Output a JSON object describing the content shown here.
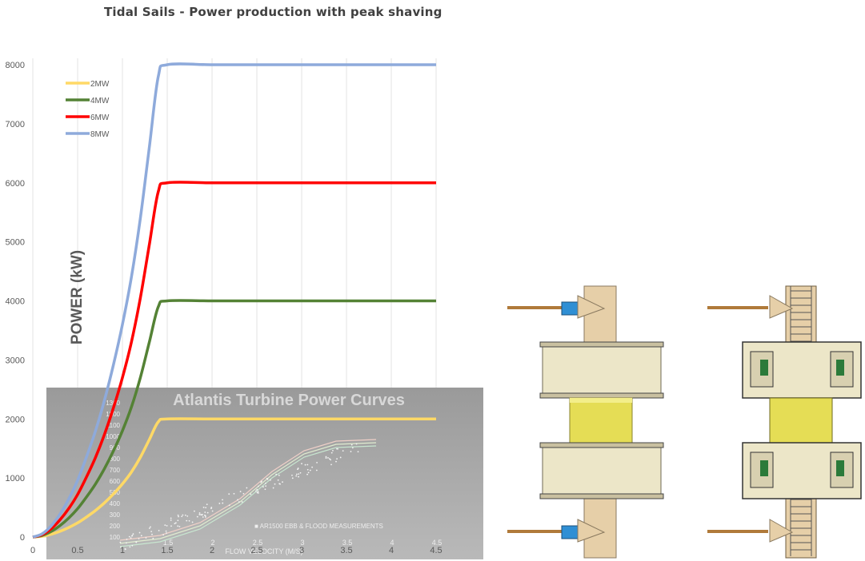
{
  "chart_data": {
    "type": "line",
    "title": "Tidal Sails - Power production with peak shaving",
    "xlabel": "",
    "ylabel": "POWER (kW)",
    "xlim": [
      0,
      4.5
    ],
    "ylim": [
      0,
      8000
    ],
    "x_ticks": [
      "0",
      "0.5",
      "1",
      "1.5",
      "2",
      "2.5",
      "3",
      "3.5",
      "4",
      "4.5"
    ],
    "y_ticks": [
      "0",
      "1000",
      "2000",
      "3000",
      "4000",
      "5000",
      "6000",
      "7000",
      "8000"
    ],
    "grid": "vertical",
    "legend_position": "top-left",
    "series": [
      {
        "name": "2MW",
        "color": "#ffd966",
        "cap": 2000,
        "x": [
          0,
          0.1,
          0.2,
          0.3,
          0.4,
          0.5,
          0.6,
          0.7,
          0.8,
          0.9,
          1.0,
          1.1,
          1.2,
          1.3,
          1.4,
          1.5,
          2.0,
          2.5,
          3.0,
          3.5,
          4.0,
          4.5
        ],
        "values": [
          0,
          12,
          45,
          95,
          160,
          240,
          340,
          450,
          580,
          730,
          900,
          1100,
          1350,
          1650,
          1950,
          2000,
          2000,
          2000,
          2000,
          2000,
          2000,
          2000
        ]
      },
      {
        "name": "4MW",
        "color": "#548235",
        "cap": 4000,
        "x": [
          0,
          0.1,
          0.2,
          0.3,
          0.4,
          0.5,
          0.6,
          0.7,
          0.8,
          0.9,
          1.0,
          1.1,
          1.2,
          1.3,
          1.4,
          1.5,
          2.0,
          2.5,
          3.0,
          3.5,
          4.0,
          4.5
        ],
        "values": [
          0,
          25,
          90,
          190,
          320,
          480,
          680,
          900,
          1160,
          1460,
          1800,
          2200,
          2700,
          3300,
          3900,
          4000,
          4000,
          4000,
          4000,
          4000,
          4000,
          4000
        ]
      },
      {
        "name": "6MW",
        "color": "#ff0000",
        "cap": 6000,
        "x": [
          0,
          0.1,
          0.2,
          0.3,
          0.4,
          0.5,
          0.6,
          0.7,
          0.8,
          0.9,
          1.0,
          1.1,
          1.2,
          1.3,
          1.4,
          1.5,
          2.0,
          2.5,
          3.0,
          3.5,
          4.0,
          4.5
        ],
        "values": [
          0,
          37,
          135,
          285,
          480,
          720,
          1020,
          1350,
          1740,
          2190,
          2700,
          3300,
          4050,
          4950,
          5850,
          6000,
          6000,
          6000,
          6000,
          6000,
          6000,
          6000
        ]
      },
      {
        "name": "8MW",
        "color": "#8eaadb",
        "cap": 8000,
        "x": [
          0,
          0.1,
          0.2,
          0.3,
          0.4,
          0.5,
          0.6,
          0.7,
          0.8,
          0.9,
          1.0,
          1.1,
          1.2,
          1.3,
          1.4,
          1.5,
          2.0,
          2.5,
          3.0,
          3.5,
          4.0,
          4.5
        ],
        "values": [
          0,
          50,
          180,
          380,
          640,
          960,
          1360,
          1800,
          2320,
          2920,
          3600,
          4400,
          5400,
          6600,
          7800,
          8000,
          8000,
          8000,
          8000,
          8000,
          8000,
          8000
        ]
      }
    ],
    "inset": {
      "title": "Atlantis Turbine Power Curves",
      "xlabel": "FLOW VELOCITY (M/S)",
      "x_ticks": [
        "1.5",
        "2",
        "2.5",
        "3",
        "3.5",
        "4",
        "4.5"
      ],
      "y_ticks": [
        "100",
        "200",
        "300",
        "400",
        "500",
        "600",
        "700",
        "800",
        "900",
        "1000",
        "1100",
        "1200",
        "1300"
      ],
      "legend": "AR1500 EBB & FLOOD MEASUREMENTS"
    }
  }
}
